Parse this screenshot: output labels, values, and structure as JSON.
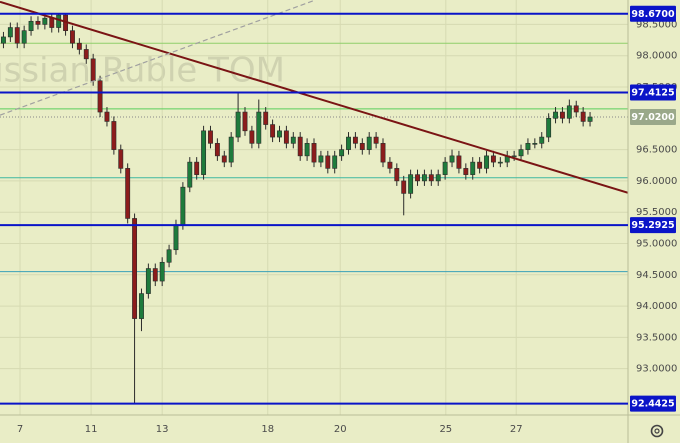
{
  "chart_data": {
    "type": "candlestick",
    "watermark": "Russian Ruble TOM",
    "background": "#e9edc6",
    "up_color": "#1e7b3c",
    "down_color": "#8c1c1c",
    "xlim": [
      -0.5,
      90.5
    ],
    "xticks": [
      {
        "value": 2.4,
        "label": "7"
      },
      {
        "value": 12.7,
        "label": "11"
      },
      {
        "value": 23,
        "label": "13"
      },
      {
        "value": 38.3,
        "label": "18"
      },
      {
        "value": 48.8,
        "label": "20"
      },
      {
        "value": 64.1,
        "label": "25"
      },
      {
        "value": 74.3,
        "label": "27"
      }
    ],
    "ylim": [
      92.26,
      98.89
    ],
    "yticks": [
      {
        "value": 93,
        "label": "93.0000"
      },
      {
        "value": 93.5,
        "label": "93.5000"
      },
      {
        "value": 94,
        "label": "94.0000"
      },
      {
        "value": 94.5,
        "label": "94.5000"
      },
      {
        "value": 95,
        "label": "95.0000"
      },
      {
        "value": 95.5,
        "label": "95.5000"
      },
      {
        "value": 96,
        "label": "96.0000"
      },
      {
        "value": 96.5,
        "label": "96.5000"
      },
      {
        "value": 97.5,
        "label": "97.5000"
      },
      {
        "value": 98,
        "label": "98.0000"
      },
      {
        "value": 98.5,
        "label": "98.5000"
      }
    ],
    "grid": true,
    "open": [
      98.2,
      98.3,
      98.45,
      98.2,
      98.4,
      98.55,
      98.5,
      98.6,
      98.45,
      98.65,
      98.4,
      98.2,
      98.1,
      97.95,
      97.6,
      97.1,
      96.95,
      96.5,
      96.2,
      95.4,
      93.8,
      94.2,
      94.6,
      94.4,
      94.7,
      94.9,
      95.3,
      95.9,
      96.3,
      96.1,
      96.8,
      96.6,
      96.4,
      96.3,
      96.7,
      97.1,
      96.8,
      96.6,
      97.1,
      96.9,
      96.7,
      96.8,
      96.6,
      96.7,
      96.4,
      96.6,
      96.3,
      96.4,
      96.2,
      96.4,
      96.5,
      96.7,
      96.6,
      96.5,
      96.7,
      96.6,
      96.3,
      96.2,
      96.0,
      95.8,
      96.1,
      96.0,
      96.1,
      96.0,
      96.1,
      96.3,
      96.4,
      96.2,
      96.1,
      96.3,
      96.2,
      96.4,
      96.3,
      96.3,
      96.4,
      96.4,
      96.5,
      96.6,
      96.6,
      96.7,
      97.0,
      97.1,
      97.0,
      97.2,
      97.1,
      96.95
    ],
    "high": [
      98.38,
      98.53,
      98.53,
      98.48,
      98.63,
      98.63,
      98.66,
      98.66,
      98.68,
      98.68,
      98.48,
      98.28,
      98.18,
      98.03,
      97.68,
      97.18,
      97.03,
      96.58,
      96.28,
      95.48,
      94.28,
      94.68,
      94.68,
      94.78,
      94.98,
      95.38,
      95.98,
      96.38,
      96.38,
      96.88,
      96.88,
      96.68,
      96.48,
      96.78,
      97.4,
      97.18,
      96.88,
      97.3,
      97.18,
      96.98,
      96.88,
      96.88,
      96.78,
      96.78,
      96.68,
      96.68,
      96.48,
      96.48,
      96.48,
      96.58,
      96.78,
      96.78,
      96.68,
      96.78,
      96.78,
      96.68,
      96.38,
      96.28,
      96.08,
      96.18,
      96.18,
      96.18,
      96.18,
      96.18,
      96.38,
      96.5,
      96.48,
      96.28,
      96.38,
      96.38,
      96.48,
      96.48,
      96.38,
      96.48,
      96.48,
      96.58,
      96.68,
      96.68,
      96.78,
      97.08,
      97.18,
      97.18,
      97.3,
      97.28,
      97.18,
      97.1
    ],
    "low": [
      98.12,
      98.22,
      98.12,
      98.12,
      98.32,
      98.42,
      98.42,
      98.37,
      98.37,
      98.32,
      98.12,
      98.02,
      97.87,
      97.52,
      97.02,
      96.87,
      96.42,
      96.12,
      95.32,
      92.44,
      93.6,
      94.12,
      94.32,
      94.32,
      94.62,
      94.82,
      95.22,
      95.82,
      96.02,
      96.02,
      96.52,
      96.32,
      96.22,
      96.22,
      96.62,
      96.72,
      96.52,
      96.52,
      96.82,
      96.62,
      96.62,
      96.52,
      96.52,
      96.32,
      96.32,
      96.22,
      96.22,
      96.12,
      96.12,
      96.32,
      96.42,
      96.52,
      96.42,
      96.42,
      96.52,
      96.22,
      96.12,
      95.92,
      95.45,
      95.72,
      95.92,
      95.92,
      95.92,
      95.92,
      96.02,
      96.22,
      96.12,
      96.02,
      96.02,
      96.12,
      96.12,
      96.22,
      96.22,
      96.22,
      96.32,
      96.32,
      96.42,
      96.52,
      96.52,
      96.62,
      96.92,
      96.92,
      96.92,
      97.02,
      96.87,
      96.87
    ],
    "close": [
      98.3,
      98.45,
      98.2,
      98.4,
      98.55,
      98.5,
      98.6,
      98.45,
      98.65,
      98.4,
      98.2,
      98.1,
      97.95,
      97.6,
      97.1,
      96.95,
      96.5,
      96.2,
      95.4,
      93.8,
      94.2,
      94.6,
      94.4,
      94.7,
      94.9,
      95.3,
      95.9,
      96.3,
      96.1,
      96.8,
      96.6,
      96.4,
      96.3,
      96.7,
      97.1,
      96.8,
      96.6,
      97.1,
      96.9,
      96.7,
      96.8,
      96.6,
      96.7,
      96.4,
      96.6,
      96.3,
      96.4,
      96.2,
      96.4,
      96.5,
      96.7,
      96.6,
      96.5,
      96.7,
      96.6,
      96.3,
      96.2,
      96.0,
      95.8,
      96.1,
      96.0,
      96.1,
      96.0,
      96.1,
      96.3,
      96.4,
      96.2,
      96.1,
      96.3,
      96.2,
      96.4,
      96.3,
      96.3,
      96.4,
      96.4,
      96.5,
      96.6,
      96.6,
      96.7,
      97.0,
      97.1,
      97.0,
      97.2,
      97.1,
      96.95,
      97.02
    ],
    "levels": [
      {
        "value": 98.67,
        "label": "98.6700",
        "color": "#0a14c8"
      },
      {
        "value": 97.4125,
        "label": "97.4125",
        "color": "#0a14c8"
      },
      {
        "value": 95.2925,
        "label": "95.2925",
        "color": "#0a14c8"
      },
      {
        "value": 92.4425,
        "label": "92.4425",
        "color": "#0a14c8"
      }
    ],
    "thin_levels": [
      {
        "value": 98.2,
        "color": "#8fcf6a"
      },
      {
        "value": 97.15,
        "color": "#5ccf5c"
      },
      {
        "value": 96.05,
        "color": "#3fb8a0"
      },
      {
        "value": 94.55,
        "color": "#3aa0b8"
      }
    ],
    "current": {
      "value": 97.02,
      "label": "97.0200",
      "color": "#9aa88a"
    },
    "trendlines": [
      {
        "x": [
          -0.5,
          90.5
        ],
        "y": [
          98.86,
          95.81
        ],
        "color": "#7a1414",
        "dashed": false
      },
      {
        "x": [
          -0.5,
          45.2
        ],
        "y": [
          97.05,
          98.89
        ],
        "color": "#a0a0a0",
        "dashed": true
      }
    ]
  }
}
